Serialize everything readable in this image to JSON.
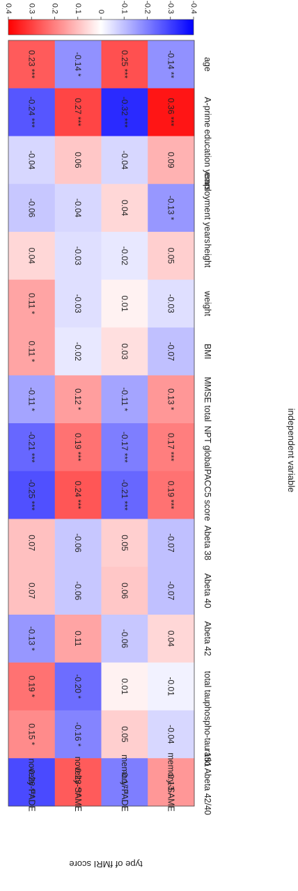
{
  "chart_data": {
    "type": "heatmap",
    "rows": [
      "novelty-FADE",
      "novelty-SAME",
      "memory-FADE",
      "memory-SAME"
    ],
    "columns": [
      "age",
      "A-prime",
      "education years",
      "employment years",
      "height",
      "weight",
      "BMI",
      "MMSE total",
      "NPT global",
      "PACC5 score",
      "Abeta 38",
      "Abeta 40",
      "Abeta 42",
      "total tau",
      "phospho-tau 181",
      "ratio Abeta 42/40"
    ],
    "values": [
      [
        0.23,
        -0.24,
        -0.04,
        -0.06,
        0.04,
        0.11,
        0.11,
        -0.11,
        -0.21,
        -0.25,
        0.07,
        0.07,
        -0.13,
        0.19,
        0.15,
        -0.26
      ],
      [
        -0.14,
        0.27,
        0.06,
        -0.04,
        -0.03,
        -0.03,
        -0.02,
        0.12,
        0.19,
        0.24,
        -0.06,
        -0.06,
        0.11,
        -0.2,
        -0.16,
        0.23
      ],
      [
        0.25,
        -0.32,
        -0.04,
        0.04,
        -0.02,
        0.01,
        0.03,
        -0.11,
        -0.17,
        -0.21,
        0.05,
        0.06,
        -0.06,
        0.01,
        0.05,
        -0.17
      ],
      [
        -0.14,
        0.36,
        0.09,
        -0.13,
        0.05,
        -0.03,
        -0.07,
        0.13,
        0.17,
        0.19,
        -0.07,
        -0.07,
        0.04,
        -0.01,
        -0.04,
        0.13
      ]
    ],
    "labels": [
      [
        "0.23 ***",
        "-0.24 ***",
        "-0.04",
        "-0.06",
        "0.04",
        "0.11 *",
        "0.11 *",
        "-0.11 *",
        "-0.21 ***",
        "-0.25 ***",
        "0.07",
        "0.07",
        "-0.13 *",
        "0.19 *",
        "0.15 *",
        "-0.26 ***"
      ],
      [
        "-0.14 *",
        "0.27 ***",
        "0.06",
        "-0.04",
        "-0.03",
        "-0.03",
        "-0.02",
        "0.12 *",
        "0.19 ***",
        "0.24 ***",
        "-0.06",
        "-0.06",
        "0.11",
        "-0.20 *",
        "-0.16 *",
        "0.23 ***"
      ],
      [
        "0.25 ***",
        "-0.32 ***",
        "-0.04",
        "0.04",
        "-0.02",
        "0.01",
        "0.03",
        "-0.11 *",
        "-0.17 ***",
        "-0.21 ***",
        "0.05",
        "0.06",
        "-0.06",
        "0.01",
        "0.05",
        "-0.17 *"
      ],
      [
        "-0.14 **",
        "0.36 ***",
        "0.09",
        "-0.13 *",
        "0.05",
        "-0.03",
        "-0.07",
        "0.13 *",
        "0.17 ***",
        "0.19 ***",
        "-0.07",
        "-0.07",
        "0.04",
        "-0.01",
        "-0.04",
        "0.13"
      ]
    ],
    "xlabel": "independent variable",
    "ylabel": "type of fMRI score",
    "colorbar": {
      "range": [
        -0.4,
        0.4
      ],
      "ticks": [
        "0.4",
        "0.3",
        "0.2",
        "0.1",
        "0",
        "-0.1",
        "-0.2",
        "-0.3",
        "-0.4"
      ],
      "tick_values": [
        0.4,
        0.3,
        0.2,
        0.1,
        0,
        -0.1,
        -0.2,
        -0.3,
        -0.4
      ],
      "positive_color": "#ff0000",
      "negative_color": "#0000ff",
      "neutral_color": "#ffffff"
    },
    "orientation": "rotated 90 degrees clockwise"
  }
}
